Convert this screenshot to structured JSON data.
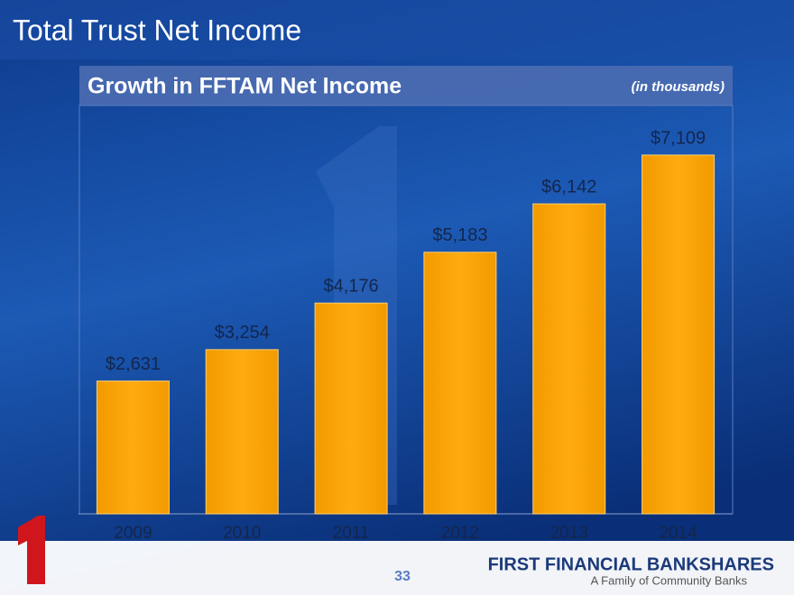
{
  "slide_title": "Total Trust Net Income",
  "chart_data": {
    "type": "bar",
    "title": "Growth in FFTAM Net Income",
    "subtitle": "(in thousands)",
    "categories": [
      "2009",
      "2010",
      "2011",
      "2012",
      "2013",
      "2014"
    ],
    "values": [
      2631,
      3254,
      4176,
      5183,
      6142,
      7109
    ],
    "value_labels": [
      "$2,631",
      "$3,254",
      "$4,176",
      "$5,183",
      "$6,142",
      "$7,109"
    ],
    "color": "#ffa500"
  },
  "footer": {
    "page_number": "33",
    "logo": "FIRST FINANCIAL BANKSHARES",
    "tagline": "A Family of Community Banks"
  }
}
